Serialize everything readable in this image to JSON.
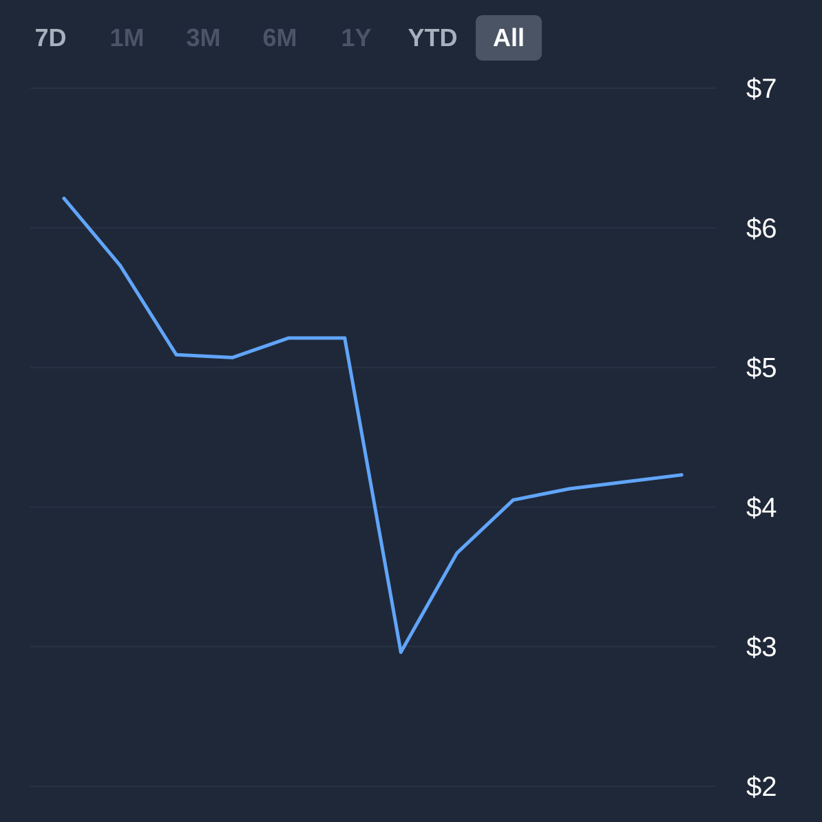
{
  "range_tabs": {
    "items": [
      {
        "label": "7D",
        "tone": "medium"
      },
      {
        "label": "1M",
        "tone": "dim"
      },
      {
        "label": "3M",
        "tone": "dim"
      },
      {
        "label": "6M",
        "tone": "dim"
      },
      {
        "label": "1Y",
        "tone": "dim"
      },
      {
        "label": "YTD",
        "tone": "medium"
      },
      {
        "label": "All",
        "tone": "active"
      }
    ],
    "selected": "All"
  },
  "colors": {
    "background": "#1f2838",
    "line": "#60a5fa",
    "grid": "#283244",
    "active_tab_bg": "#4a5465"
  },
  "chart_data": {
    "type": "line",
    "title": "",
    "xlabel": "",
    "ylabel": "",
    "ylim": [
      2,
      7
    ],
    "y_ticks": [
      "$7",
      "$6",
      "$5",
      "$4",
      "$3",
      "$2"
    ],
    "y_tick_values": [
      7,
      6,
      5,
      4,
      3,
      2
    ],
    "y_axis_position": "right",
    "grid": true,
    "series": [
      {
        "values": [
          6.21,
          5.73,
          5.09,
          5.07,
          5.21,
          5.21,
          2.96,
          3.67,
          4.05,
          4.13,
          4.18,
          4.23
        ]
      }
    ]
  }
}
